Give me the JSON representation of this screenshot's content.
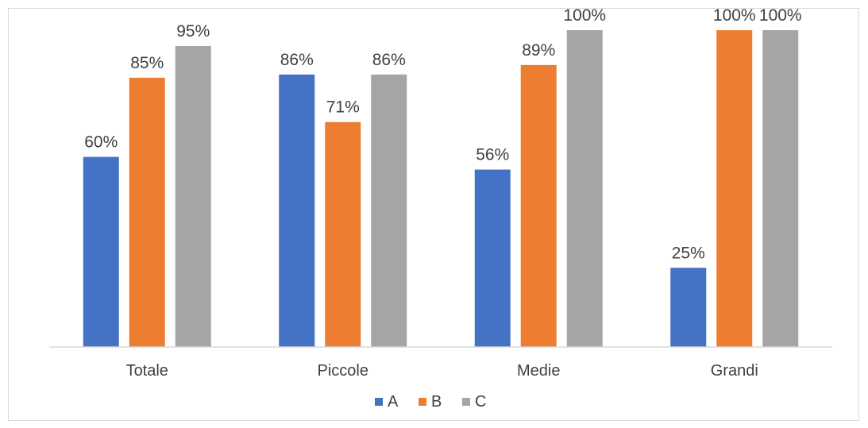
{
  "chart_data": {
    "type": "bar",
    "categories": [
      "Totale",
      "Piccole",
      "Medie",
      "Grandi"
    ],
    "series": [
      {
        "name": "A",
        "color": "#4472C4",
        "values": [
          60,
          86,
          56,
          25
        ],
        "labels": [
          "60%",
          "86%",
          "56%",
          "25%"
        ]
      },
      {
        "name": "B",
        "color": "#ED7D31",
        "values": [
          85,
          71,
          89,
          100
        ],
        "labels": [
          "85%",
          "71%",
          "89%",
          "100%"
        ]
      },
      {
        "name": "C",
        "color": "#A5A5A5",
        "values": [
          95,
          86,
          100,
          100
        ],
        "labels": [
          "95%",
          "86%",
          "100%",
          "100%"
        ]
      }
    ],
    "title": "",
    "xlabel": "",
    "ylabel": "",
    "ylim": [
      0,
      100
    ],
    "grid": false,
    "legend_position": "bottom"
  }
}
